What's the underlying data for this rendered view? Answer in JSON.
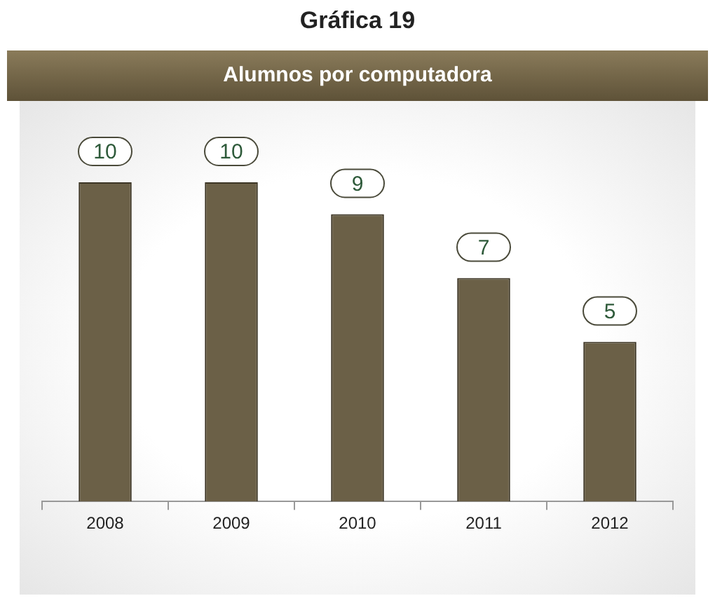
{
  "chart_data": {
    "type": "bar",
    "title": "Gráfica 19",
    "subtitle": "Alumnos por computadora",
    "categories": [
      "2008",
      "2009",
      "2010",
      "2011",
      "2012"
    ],
    "values": [
      10,
      10,
      9,
      7,
      5
    ],
    "color": "#6b6047",
    "data_labels": true,
    "grid": false,
    "legend": false
  }
}
